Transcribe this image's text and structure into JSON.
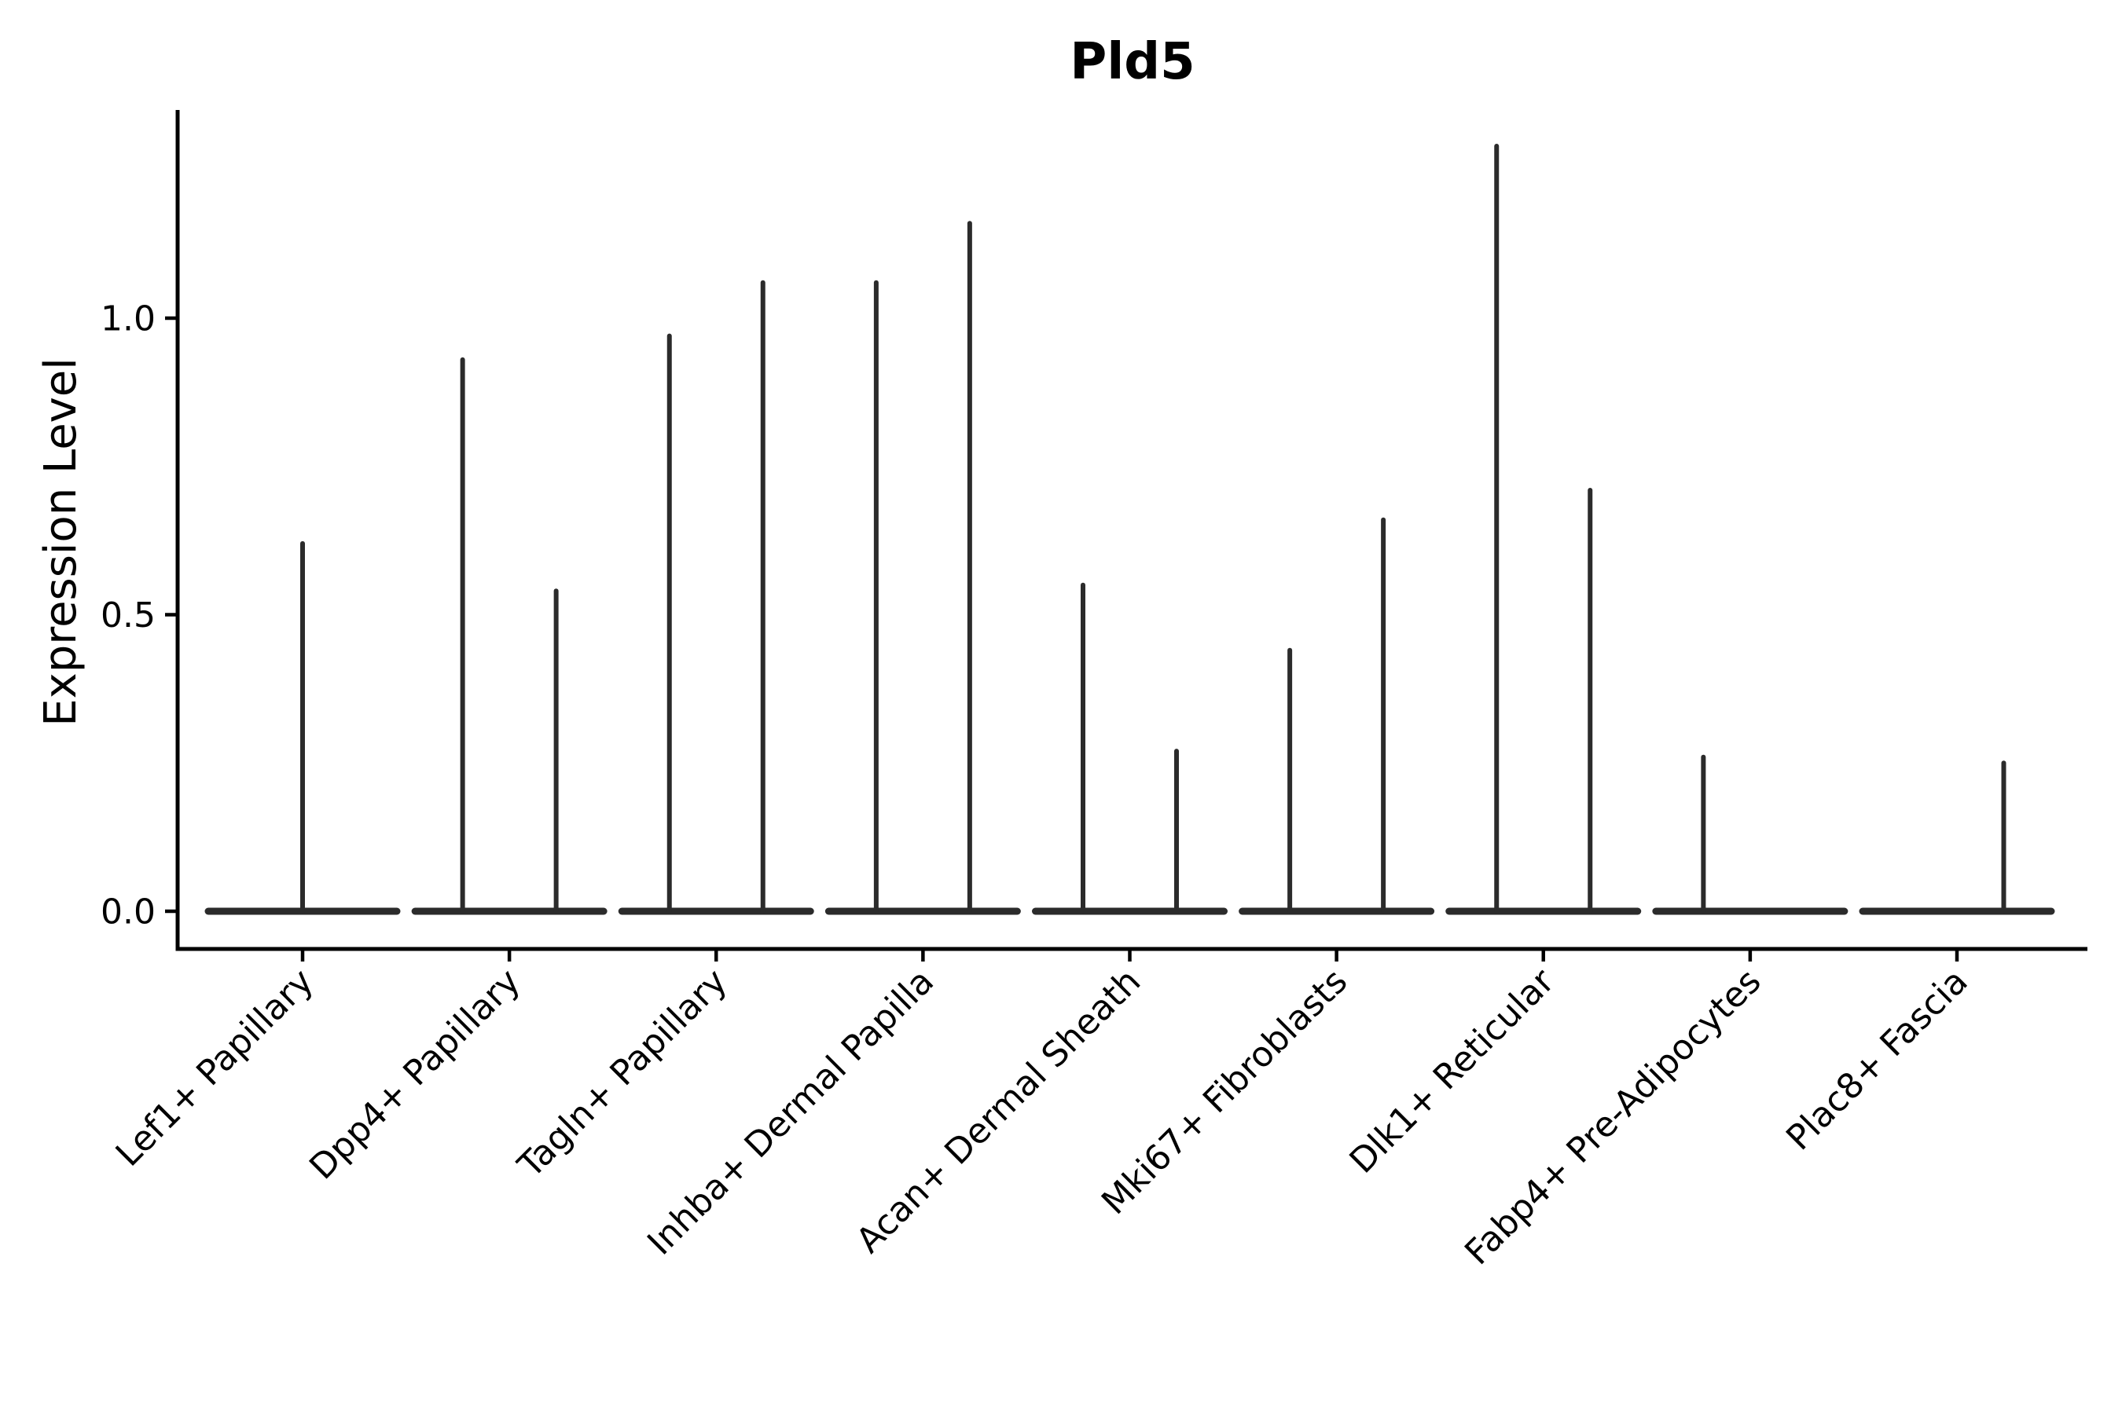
{
  "figure": {
    "background": "#ffffff",
    "title": "Pld5"
  },
  "chart_data": {
    "type": "violin",
    "title": "Pld5",
    "xlabel": "",
    "ylabel": "Expression Level",
    "grid": false,
    "legend": null,
    "ylim": [
      -0.06,
      1.35
    ],
    "yticks": [
      0.0,
      0.5,
      1.0
    ],
    "ytick_labels": [
      "0.0",
      "0.5",
      "1.0"
    ],
    "line_color": "#2b2b2b",
    "axis_color": "#000000",
    "categories": [
      "Lef1+ Papillary",
      "Dpp4+ Papillary",
      "Tagln+ Papillary",
      "Inhba+ Dermal Papilla",
      "Acan+ Dermal Sheath",
      "Mki67+ Fibroblasts",
      "Dlk1+ Reticular",
      "Fabp4+ Pre-Adipocytes",
      "Plac8+ Fascia"
    ],
    "violins": [
      {
        "category": "Lef1+ Papillary",
        "spikes": [
          {
            "side": "center",
            "peak": 0.62
          }
        ]
      },
      {
        "category": "Dpp4+ Papillary",
        "spikes": [
          {
            "side": "left",
            "peak": 0.93
          },
          {
            "side": "right",
            "peak": 0.54
          }
        ]
      },
      {
        "category": "Tagln+ Papillary",
        "spikes": [
          {
            "side": "left",
            "peak": 0.97
          },
          {
            "side": "right",
            "peak": 1.06
          }
        ]
      },
      {
        "category": "Inhba+ Dermal Papilla",
        "spikes": [
          {
            "side": "left",
            "peak": 1.06
          },
          {
            "side": "right",
            "peak": 1.16
          }
        ]
      },
      {
        "category": "Acan+ Dermal Sheath",
        "spikes": [
          {
            "side": "left",
            "peak": 0.55
          },
          {
            "side": "right",
            "peak": 0.27
          }
        ]
      },
      {
        "category": "Mki67+ Fibroblasts",
        "spikes": [
          {
            "side": "left",
            "peak": 0.44
          },
          {
            "side": "right",
            "peak": 0.66
          }
        ]
      },
      {
        "category": "Dlk1+ Reticular",
        "spikes": [
          {
            "side": "left",
            "peak": 1.29
          },
          {
            "side": "right",
            "peak": 0.71
          }
        ]
      },
      {
        "category": "Fabp4+ Pre-Adipocytes",
        "spikes": [
          {
            "side": "left",
            "peak": 0.26
          }
        ]
      },
      {
        "category": "Plac8+ Fascia",
        "spikes": [
          {
            "side": "right",
            "peak": 0.25
          }
        ]
      }
    ]
  }
}
